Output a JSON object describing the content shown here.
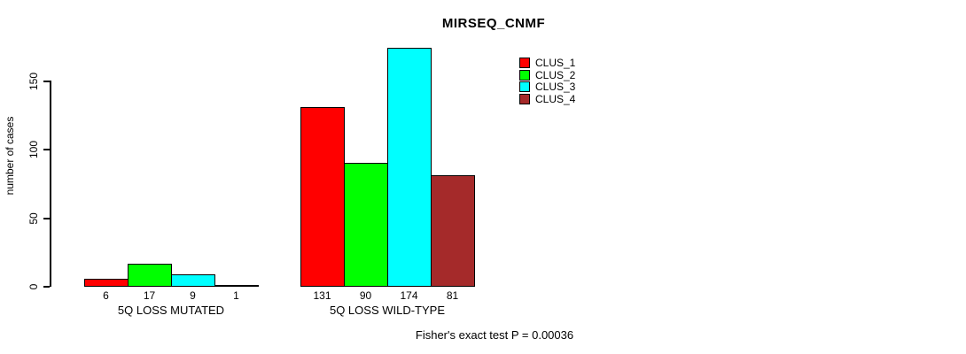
{
  "chart_data": {
    "type": "bar",
    "title": "MIRSEQ_CNMF",
    "xlabel": "",
    "ylabel": "number of cases",
    "categories": [
      "5Q LOSS MUTATED",
      "5Q LOSS WILD-TYPE"
    ],
    "series": [
      {
        "name": "CLUS_1",
        "color": "#ff0000",
        "values": [
          6,
          131
        ]
      },
      {
        "name": "CLUS_2",
        "color": "#00ff00",
        "values": [
          17,
          90
        ]
      },
      {
        "name": "CLUS_3",
        "color": "#00ffff",
        "values": [
          9,
          174
        ]
      },
      {
        "name": "CLUS_4",
        "color": "#a52a2a",
        "values": [
          1,
          81
        ]
      }
    ],
    "y_ticks": [
      0,
      50,
      100,
      150
    ],
    "ylim": [
      0,
      175
    ],
    "grid": false,
    "legend_position": "top-right",
    "bar_value_labels_shown": true,
    "annotation": "Fisher's exact test P = 0.00036"
  }
}
